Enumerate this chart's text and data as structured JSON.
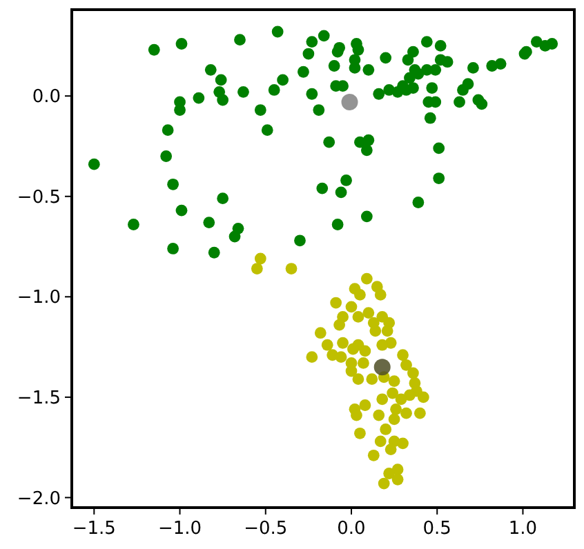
{
  "chart_data": {
    "type": "scatter",
    "xlim": [
      -1.63,
      1.3
    ],
    "ylim": [
      -2.05,
      0.43
    ],
    "xticks": [
      {
        "value": -1.5,
        "label": "−1.5"
      },
      {
        "value": -1,
        "label": "−1.0"
      },
      {
        "value": -0.5,
        "label": "−0.5"
      },
      {
        "value": 0,
        "label": "0.0"
      },
      {
        "value": 0.5,
        "label": "0.5"
      },
      {
        "value": 1,
        "label": "1.0"
      }
    ],
    "yticks": [
      {
        "value": -2,
        "label": "−2.0"
      },
      {
        "value": -1.5,
        "label": "−1.5"
      },
      {
        "value": -1,
        "label": "−1.0"
      },
      {
        "value": -0.5,
        "label": "−0.5"
      },
      {
        "value": 0,
        "label": "0.0"
      }
    ],
    "marker": "circle",
    "series": [
      {
        "color": "#008000",
        "x": [
          -1.15,
          -0.99,
          -0.65,
          -0.43,
          -0.23,
          -0.16,
          -0.25,
          -0.07,
          -0.08,
          0.03,
          0.04,
          0.02,
          0.02,
          -0.1,
          0.1,
          0.2,
          -0.28,
          -0.4,
          -0.45,
          -0.82,
          -0.76,
          -0.77,
          -0.75,
          -0.89,
          -1,
          -1,
          -0.63,
          -0.53,
          -0.49,
          -0.23,
          -0.19,
          -0.09,
          -0.05,
          -1.07,
          -1.08,
          -1.04,
          -0.99,
          -1.27,
          -1.5,
          -1.04,
          -0.83,
          -0.75,
          -0.8,
          -0.66,
          -0.68,
          -0.3,
          -0.17,
          -0.06,
          -0.03,
          -0.08,
          0.09,
          -0.13,
          0.05,
          0.1,
          0.09,
          0.39,
          0.51,
          0.51,
          0.46,
          0.45,
          0.49,
          0.47,
          0.16,
          0.22,
          0.27,
          0.32,
          0.36,
          0.34,
          0.37,
          0.33,
          0.36,
          0.44,
          0.52,
          0.52,
          0.56,
          0.44,
          0.49,
          0.39,
          0.3,
          0.63,
          0.65,
          0.68,
          0.71,
          0.74,
          0.76,
          0.82,
          0.87,
          1.01,
          1.02,
          1.08,
          1.13,
          1.17
        ],
        "values": [
          0.23,
          0.26,
          0.28,
          0.32,
          0.27,
          0.3,
          0.21,
          0.24,
          0.22,
          0.26,
          0.23,
          0.18,
          0.14,
          0.15,
          0.13,
          0.19,
          0.12,
          0.08,
          0.03,
          0.13,
          0.08,
          0.02,
          -0.02,
          -0.01,
          -0.03,
          -0.07,
          0.02,
          -0.07,
          -0.17,
          0.01,
          -0.07,
          0.05,
          0.05,
          -0.17,
          -0.3,
          -0.44,
          -0.57,
          -0.64,
          -0.34,
          -0.76,
          -0.63,
          -0.51,
          -0.78,
          -0.66,
          -0.7,
          -0.72,
          -0.46,
          -0.48,
          -0.42,
          -0.64,
          -0.6,
          -0.23,
          -0.23,
          -0.22,
          -0.27,
          -0.53,
          -0.41,
          -0.26,
          -0.11,
          -0.03,
          -0.03,
          0.04,
          0.01,
          0.03,
          0.02,
          0.03,
          0.04,
          0.09,
          0.13,
          0.18,
          0.22,
          0.27,
          0.25,
          0.18,
          0.17,
          0.13,
          0.13,
          0.11,
          0.05,
          -0.03,
          0.03,
          0.06,
          0.14,
          -0.02,
          -0.04,
          0.15,
          0.16,
          0.21,
          0.22,
          0.27,
          0.25,
          0.26
        ]
      },
      {
        "color": "#bfbf00",
        "x": [
          -0.53,
          -0.55,
          -0.35,
          0.09,
          0.15,
          0.02,
          0.17,
          0.05,
          -0.09,
          0,
          -0.05,
          -0.07,
          0.04,
          0.1,
          0.13,
          0.18,
          0.14,
          0.22,
          0.21,
          -0.18,
          0.23,
          0.18,
          -0.14,
          -0.05,
          0.04,
          -0.11,
          -0.06,
          0.01,
          0.08,
          -0.23,
          0,
          0.07,
          0,
          0.04,
          0.12,
          0.19,
          0.25,
          0.3,
          0.32,
          0.36,
          0.37,
          0.38,
          0.42,
          0.34,
          0.29,
          0.24,
          0.18,
          0.26,
          0.32,
          0.4,
          0.25,
          0.16,
          0.08,
          0.02,
          0.03,
          0.2,
          0.05,
          0.17,
          0.25,
          0.3,
          0.23,
          0.13,
          0.27,
          0.22,
          0.27,
          0.19
        ],
        "values": [
          -0.81,
          -0.86,
          -0.86,
          -0.91,
          -0.95,
          -0.96,
          -0.99,
          -0.99,
          -1.03,
          -1.05,
          -1.1,
          -1.14,
          -1.1,
          -1.08,
          -1.13,
          -1.1,
          -1.17,
          -1.13,
          -1.17,
          -1.18,
          -1.23,
          -1.24,
          -1.24,
          -1.23,
          -1.24,
          -1.29,
          -1.3,
          -1.26,
          -1.27,
          -1.3,
          -1.33,
          -1.33,
          -1.37,
          -1.41,
          -1.41,
          -1.4,
          -1.42,
          -1.29,
          -1.34,
          -1.38,
          -1.43,
          -1.47,
          -1.5,
          -1.49,
          -1.51,
          -1.48,
          -1.51,
          -1.56,
          -1.58,
          -1.58,
          -1.61,
          -1.59,
          -1.54,
          -1.56,
          -1.59,
          -1.66,
          -1.68,
          -1.72,
          -1.72,
          -1.73,
          -1.76,
          -1.79,
          -1.86,
          -1.88,
          -1.91,
          -1.93
        ]
      },
      {
        "color": "#808080",
        "x": [
          -0.01
        ],
        "values": [
          -0.03
        ]
      },
      {
        "color": "#4d4d26",
        "x": [
          0.18
        ],
        "values": [
          -1.35
        ]
      }
    ]
  }
}
